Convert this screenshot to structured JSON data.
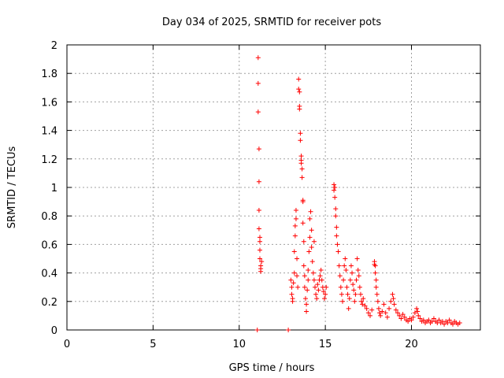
{
  "chart_data": {
    "type": "scatter",
    "title": "Day 034 of 2025, SRMTID for receiver pots",
    "xlabel": "GPS time / hours",
    "ylabel": "SRMTID / TECUs",
    "xlim": [
      0,
      24
    ],
    "ylim": [
      0,
      2
    ],
    "xticks": [
      0,
      5,
      10,
      15,
      20
    ],
    "yticks": [
      0,
      0.2,
      0.4,
      0.6,
      0.8,
      1,
      1.2,
      1.4,
      1.6,
      1.8,
      2
    ],
    "ytick_labels": [
      "0",
      "0.2",
      "0.4",
      "0.6",
      "0.8",
      "1",
      "1.2",
      "1.4",
      "1.6",
      "1.8",
      "2"
    ],
    "grid": true,
    "marker": "plus",
    "marker_color": "#ff0000",
    "series": [
      {
        "name": "SRMTID",
        "points": [
          [
            11.1,
            1.91
          ],
          [
            11.1,
            1.73
          ],
          [
            11.1,
            1.53
          ],
          [
            11.15,
            1.27
          ],
          [
            11.15,
            1.04
          ],
          [
            11.15,
            0.84
          ],
          [
            11.15,
            0.71
          ],
          [
            11.2,
            0.65
          ],
          [
            11.2,
            0.62
          ],
          [
            11.2,
            0.56
          ],
          [
            11.2,
            0.5
          ],
          [
            11.25,
            0.45
          ],
          [
            11.25,
            0.43
          ],
          [
            11.25,
            0.41
          ],
          [
            11.3,
            0.48
          ],
          [
            11.05,
            0.0
          ],
          [
            12.85,
            0.0
          ],
          [
            13.0,
            0.35
          ],
          [
            13.05,
            0.3
          ],
          [
            13.05,
            0.25
          ],
          [
            13.1,
            0.22
          ],
          [
            13.1,
            0.2
          ],
          [
            13.15,
            0.33
          ],
          [
            13.2,
            0.4
          ],
          [
            13.2,
            0.55
          ],
          [
            13.25,
            0.66
          ],
          [
            13.25,
            0.73
          ],
          [
            13.3,
            0.78
          ],
          [
            13.3,
            0.84
          ],
          [
            13.35,
            0.5
          ],
          [
            13.35,
            0.38
          ],
          [
            13.4,
            0.3
          ],
          [
            13.45,
            1.76
          ],
          [
            13.45,
            1.69
          ],
          [
            13.5,
            1.67
          ],
          [
            13.5,
            1.57
          ],
          [
            13.5,
            1.55
          ],
          [
            13.55,
            1.38
          ],
          [
            13.55,
            1.33
          ],
          [
            13.6,
            1.22
          ],
          [
            13.6,
            1.19
          ],
          [
            13.6,
            1.17
          ],
          [
            13.65,
            1.13
          ],
          [
            13.65,
            1.07
          ],
          [
            13.7,
            0.91
          ],
          [
            13.7,
            0.9
          ],
          [
            13.7,
            0.75
          ],
          [
            13.75,
            0.62
          ],
          [
            13.75,
            0.45
          ],
          [
            13.8,
            0.38
          ],
          [
            13.8,
            0.3
          ],
          [
            13.85,
            0.22
          ],
          [
            13.9,
            0.13
          ],
          [
            13.9,
            0.18
          ],
          [
            13.95,
            0.28
          ],
          [
            14.0,
            0.35
          ],
          [
            14.0,
            0.42
          ],
          [
            14.05,
            0.55
          ],
          [
            14.1,
            0.65
          ],
          [
            14.1,
            0.78
          ],
          [
            14.15,
            0.83
          ],
          [
            14.2,
            0.7
          ],
          [
            14.2,
            0.58
          ],
          [
            14.25,
            0.48
          ],
          [
            14.3,
            0.4
          ],
          [
            14.35,
            0.35
          ],
          [
            14.35,
            0.62
          ],
          [
            14.4,
            0.3
          ],
          [
            14.45,
            0.25
          ],
          [
            14.5,
            0.22
          ],
          [
            14.55,
            0.32
          ],
          [
            14.6,
            0.28
          ],
          [
            14.65,
            0.35
          ],
          [
            14.7,
            0.38
          ],
          [
            14.75,
            0.42
          ],
          [
            14.8,
            0.35
          ],
          [
            14.85,
            0.3
          ],
          [
            14.9,
            0.27
          ],
          [
            14.95,
            0.22
          ],
          [
            15.0,
            0.25
          ],
          [
            15.05,
            0.3
          ],
          [
            15.5,
            1.02
          ],
          [
            15.5,
            0.98
          ],
          [
            15.55,
            1.0
          ],
          [
            15.55,
            0.93
          ],
          [
            15.6,
            0.85
          ],
          [
            15.6,
            0.8
          ],
          [
            15.65,
            0.72
          ],
          [
            15.65,
            0.66
          ],
          [
            15.7,
            0.6
          ],
          [
            15.75,
            0.55
          ],
          [
            15.8,
            0.45
          ],
          [
            15.85,
            0.38
          ],
          [
            15.9,
            0.3
          ],
          [
            15.95,
            0.25
          ],
          [
            16.0,
            0.2
          ],
          [
            16.05,
            0.35
          ],
          [
            16.1,
            0.45
          ],
          [
            16.15,
            0.5
          ],
          [
            16.2,
            0.42
          ],
          [
            16.25,
            0.3
          ],
          [
            16.3,
            0.25
          ],
          [
            16.35,
            0.15
          ],
          [
            16.4,
            0.22
          ],
          [
            16.45,
            0.35
          ],
          [
            16.5,
            0.45
          ],
          [
            16.55,
            0.4
          ],
          [
            16.6,
            0.32
          ],
          [
            16.65,
            0.28
          ],
          [
            16.7,
            0.2
          ],
          [
            16.75,
            0.25
          ],
          [
            16.8,
            0.35
          ],
          [
            16.85,
            0.5
          ],
          [
            16.9,
            0.42
          ],
          [
            16.95,
            0.38
          ],
          [
            17.0,
            0.3
          ],
          [
            17.05,
            0.25
          ],
          [
            17.1,
            0.2
          ],
          [
            17.15,
            0.18
          ],
          [
            17.2,
            0.22
          ],
          [
            17.3,
            0.17
          ],
          [
            17.4,
            0.15
          ],
          [
            17.5,
            0.12
          ],
          [
            17.6,
            0.1
          ],
          [
            17.7,
            0.14
          ],
          [
            17.85,
            0.48
          ],
          [
            17.85,
            0.46
          ],
          [
            17.9,
            0.45
          ],
          [
            17.9,
            0.4
          ],
          [
            17.95,
            0.35
          ],
          [
            17.95,
            0.3
          ],
          [
            18.0,
            0.25
          ],
          [
            18.05,
            0.2
          ],
          [
            18.1,
            0.15
          ],
          [
            18.15,
            0.12
          ],
          [
            18.2,
            0.1
          ],
          [
            18.3,
            0.13
          ],
          [
            18.4,
            0.18
          ],
          [
            18.5,
            0.12
          ],
          [
            18.6,
            0.09
          ],
          [
            18.7,
            0.15
          ],
          [
            18.8,
            0.2
          ],
          [
            18.9,
            0.25
          ],
          [
            18.95,
            0.22
          ],
          [
            19.0,
            0.18
          ],
          [
            19.1,
            0.14
          ],
          [
            19.2,
            0.12
          ],
          [
            19.3,
            0.1
          ],
          [
            19.4,
            0.08
          ],
          [
            19.5,
            0.11
          ],
          [
            19.6,
            0.09
          ],
          [
            19.7,
            0.07
          ],
          [
            19.8,
            0.06
          ],
          [
            19.9,
            0.08
          ],
          [
            20.0,
            0.07
          ],
          [
            20.1,
            0.09
          ],
          [
            20.2,
            0.12
          ],
          [
            20.3,
            0.15
          ],
          [
            20.35,
            0.13
          ],
          [
            20.4,
            0.1
          ],
          [
            20.5,
            0.08
          ],
          [
            20.6,
            0.06
          ],
          [
            20.7,
            0.07
          ],
          [
            20.8,
            0.05
          ],
          [
            20.9,
            0.06
          ],
          [
            21.0,
            0.07
          ],
          [
            21.1,
            0.05
          ],
          [
            21.2,
            0.06
          ],
          [
            21.3,
            0.08
          ],
          [
            21.4,
            0.06
          ],
          [
            21.5,
            0.05
          ],
          [
            21.6,
            0.07
          ],
          [
            21.7,
            0.05
          ],
          [
            21.8,
            0.06
          ],
          [
            21.9,
            0.04
          ],
          [
            22.0,
            0.06
          ],
          [
            22.1,
            0.05
          ],
          [
            22.2,
            0.07
          ],
          [
            22.3,
            0.05
          ],
          [
            22.4,
            0.04
          ],
          [
            22.5,
            0.06
          ],
          [
            22.6,
            0.05
          ],
          [
            22.7,
            0.04
          ],
          [
            22.8,
            0.05
          ]
        ]
      }
    ]
  }
}
